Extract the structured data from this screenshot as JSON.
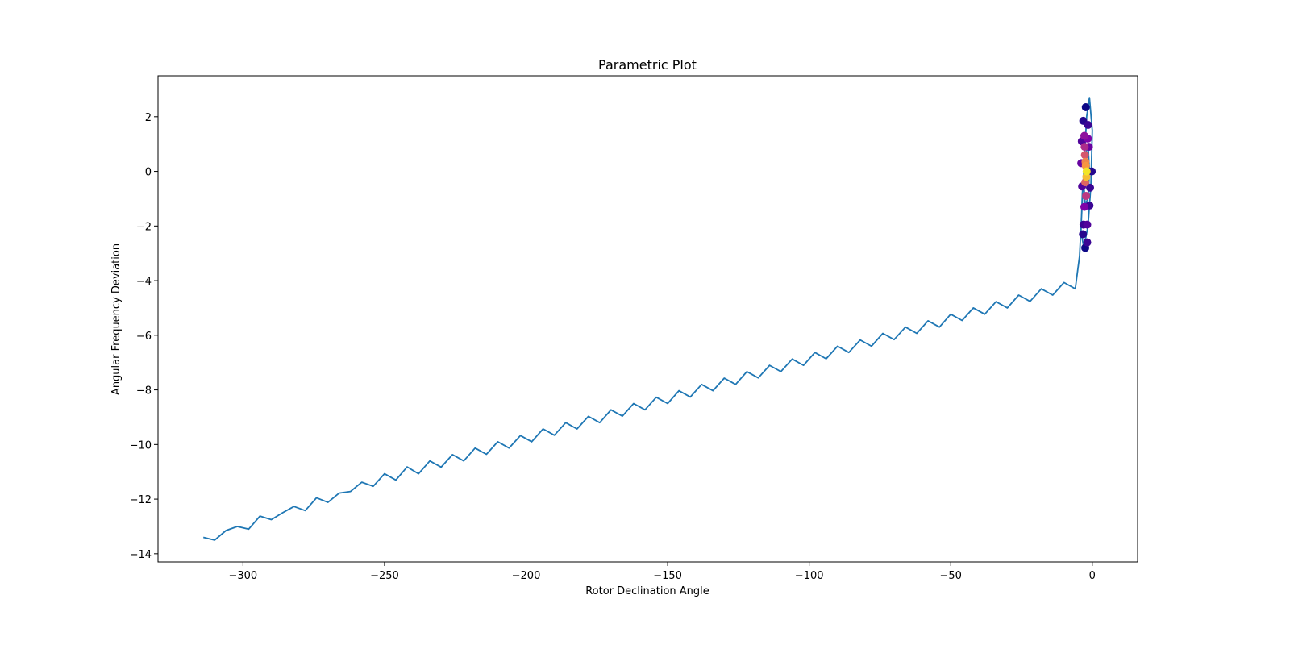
{
  "chart_data": {
    "type": "line",
    "title": "Parametric Plot",
    "xlabel": "Rotor Declination Angle",
    "ylabel": "Angular Frequency Deviation",
    "xlim": [
      -330,
      16
    ],
    "ylim": [
      -14.3,
      3.5
    ],
    "grid": false,
    "legend": "none",
    "x_ticks": [
      -300,
      -250,
      -200,
      -150,
      -100,
      -50,
      0
    ],
    "x_tick_labels": [
      "−300",
      "−250",
      "−200",
      "−150",
      "−100",
      "−50",
      "0"
    ],
    "y_ticks": [
      2,
      0,
      -2,
      -4,
      -6,
      -8,
      -10,
      -12,
      -14
    ],
    "y_tick_labels": [
      "2",
      "0",
      "−2",
      "−4",
      "−6",
      "−8",
      "−10",
      "−12",
      "−14"
    ],
    "line_color": "#1f77b4",
    "series": [
      {
        "values": [
          [
            -314.0,
            -13.4
          ],
          [
            -310.0,
            -13.5
          ],
          [
            -306.0,
            -13.15
          ],
          [
            -302.0,
            -13.0
          ],
          [
            -298.0,
            -13.1
          ],
          [
            -294.0,
            -12.62
          ],
          [
            -290.0,
            -12.75
          ],
          [
            -286.0,
            -12.5
          ],
          [
            -282.0,
            -12.27
          ],
          [
            -278.0,
            -12.42
          ],
          [
            -274.0,
            -11.95
          ],
          [
            -270.0,
            -12.12
          ],
          [
            -266.0,
            -11.78
          ],
          [
            -262.0,
            -11.72
          ],
          [
            -258.0,
            -11.38
          ],
          [
            -254.0,
            -11.53
          ],
          [
            -250.0,
            -11.07
          ],
          [
            -246.0,
            -11.3
          ],
          [
            -242.0,
            -10.82
          ],
          [
            -238.0,
            -11.07
          ],
          [
            -234.0,
            -10.6
          ],
          [
            -230.0,
            -10.83
          ],
          [
            -226.0,
            -10.37
          ],
          [
            -222.0,
            -10.6
          ],
          [
            -218.0,
            -10.13
          ],
          [
            -214.0,
            -10.36
          ],
          [
            -210.0,
            -9.9
          ],
          [
            -206.0,
            -10.13
          ],
          [
            -202.0,
            -9.67
          ],
          [
            -198.0,
            -9.9
          ],
          [
            -194.0,
            -9.43
          ],
          [
            -190.0,
            -9.66
          ],
          [
            -186.0,
            -9.2
          ],
          [
            -182.0,
            -9.43
          ],
          [
            -178.0,
            -8.97
          ],
          [
            -174.0,
            -9.2
          ],
          [
            -170.0,
            -8.73
          ],
          [
            -166.0,
            -8.96
          ],
          [
            -162.0,
            -8.5
          ],
          [
            -158.0,
            -8.73
          ],
          [
            -154.0,
            -8.27
          ],
          [
            -150.0,
            -8.5
          ],
          [
            -146.0,
            -8.03
          ],
          [
            -142.0,
            -8.26
          ],
          [
            -138.0,
            -7.8
          ],
          [
            -134.0,
            -8.03
          ],
          [
            -130.0,
            -7.57
          ],
          [
            -126.0,
            -7.8
          ],
          [
            -122.0,
            -7.33
          ],
          [
            -118.0,
            -7.56
          ],
          [
            -114.0,
            -7.1
          ],
          [
            -110.0,
            -7.33
          ],
          [
            -106.0,
            -6.87
          ],
          [
            -102.0,
            -7.1
          ],
          [
            -98.0,
            -6.63
          ],
          [
            -94.0,
            -6.86
          ],
          [
            -90.0,
            -6.4
          ],
          [
            -86.0,
            -6.63
          ],
          [
            -82.0,
            -6.17
          ],
          [
            -78.0,
            -6.4
          ],
          [
            -74.0,
            -5.93
          ],
          [
            -70.0,
            -6.16
          ],
          [
            -66.0,
            -5.7
          ],
          [
            -62.0,
            -5.93
          ],
          [
            -58.0,
            -5.47
          ],
          [
            -54.0,
            -5.7
          ],
          [
            -50.0,
            -5.23
          ],
          [
            -46.0,
            -5.46
          ],
          [
            -42.0,
            -5.0
          ],
          [
            -38.0,
            -5.23
          ],
          [
            -34.0,
            -4.77
          ],
          [
            -30.0,
            -5.0
          ],
          [
            -26.0,
            -4.53
          ],
          [
            -22.0,
            -4.76
          ],
          [
            -18.0,
            -4.3
          ],
          [
            -14.0,
            -4.53
          ],
          [
            -10.0,
            -4.07
          ],
          [
            -6.0,
            -4.3
          ],
          [
            -4.5,
            -3.1
          ],
          [
            -3.0,
            0.0
          ],
          [
            -2.0,
            2.0
          ],
          [
            -1.0,
            2.7
          ],
          [
            0.0,
            1.5
          ],
          [
            -0.5,
            -0.5
          ],
          [
            -1.5,
            -2.0
          ],
          [
            -3.0,
            -2.8
          ],
          [
            -4.0,
            -2.2
          ],
          [
            -3.5,
            -0.8
          ],
          [
            -2.5,
            0.5
          ],
          [
            -1.5,
            1.0
          ],
          [
            -1.0,
            0.0
          ],
          [
            -1.5,
            -1.0
          ],
          [
            -2.5,
            -1.2
          ],
          [
            -3.0,
            -0.5
          ],
          [
            -2.5,
            0.3
          ],
          [
            -2.0,
            0.0
          ]
        ]
      }
    ],
    "scatter": {
      "colormap": "plasma",
      "points": [
        [
          -2.3,
          2.35,
          0.0
        ],
        [
          -3.2,
          1.85,
          0.05
        ],
        [
          -1.5,
          1.7,
          0.1
        ],
        [
          -3.7,
          1.1,
          0.15
        ],
        [
          -2.8,
          1.3,
          0.3
        ],
        [
          -1.6,
          1.2,
          0.25
        ],
        [
          -3.9,
          0.3,
          0.2
        ],
        [
          -1.2,
          0.9,
          0.2
        ],
        [
          -0.2,
          0.0,
          0.05
        ],
        [
          -3.6,
          -0.55,
          0.15
        ],
        [
          -0.8,
          -0.6,
          0.1
        ],
        [
          -2.8,
          -1.3,
          0.25
        ],
        [
          -1.0,
          -1.25,
          0.1
        ],
        [
          -3.1,
          -1.95,
          0.1
        ],
        [
          -1.8,
          -1.95,
          0.15
        ],
        [
          -3.3,
          -2.3,
          0.05
        ],
        [
          -1.8,
          -2.6,
          0.1
        ],
        [
          -2.5,
          -2.8,
          0.0
        ],
        [
          -2.6,
          0.6,
          0.55
        ],
        [
          -2.3,
          0.2,
          0.75
        ],
        [
          -2.0,
          0.0,
          0.95
        ],
        [
          -2.5,
          -0.4,
          0.6
        ],
        [
          -2.2,
          -0.9,
          0.45
        ],
        [
          -2.7,
          0.9,
          0.4
        ],
        [
          -2.1,
          -0.2,
          0.85
        ],
        [
          -2.4,
          0.35,
          0.7
        ]
      ]
    }
  }
}
